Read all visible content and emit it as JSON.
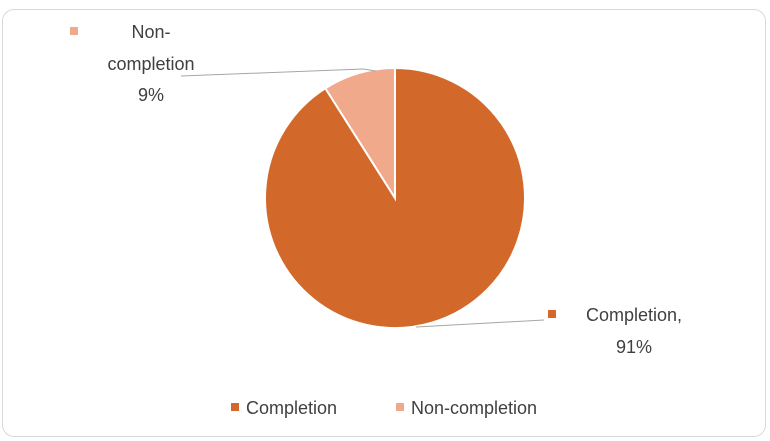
{
  "chart_data": {
    "type": "pie",
    "title": "",
    "categories": [
      "Completion",
      "Non-completion"
    ],
    "values": [
      91,
      9
    ],
    "value_unit": "%",
    "start_angle_deg": 0,
    "colors": [
      "#D2692A",
      "#F0A98A"
    ],
    "data_labels": {
      "completion_line1": "Completion,",
      "completion_line2": "91%",
      "noncompletion_line1": "Non-",
      "noncompletion_line2": "completion",
      "noncompletion_line3": "9%"
    },
    "legend": {
      "position": "bottom",
      "items": [
        {
          "label": "Completion",
          "color": "#D2692A"
        },
        {
          "label": "Non-completion",
          "color": "#F0A98A"
        }
      ]
    }
  }
}
